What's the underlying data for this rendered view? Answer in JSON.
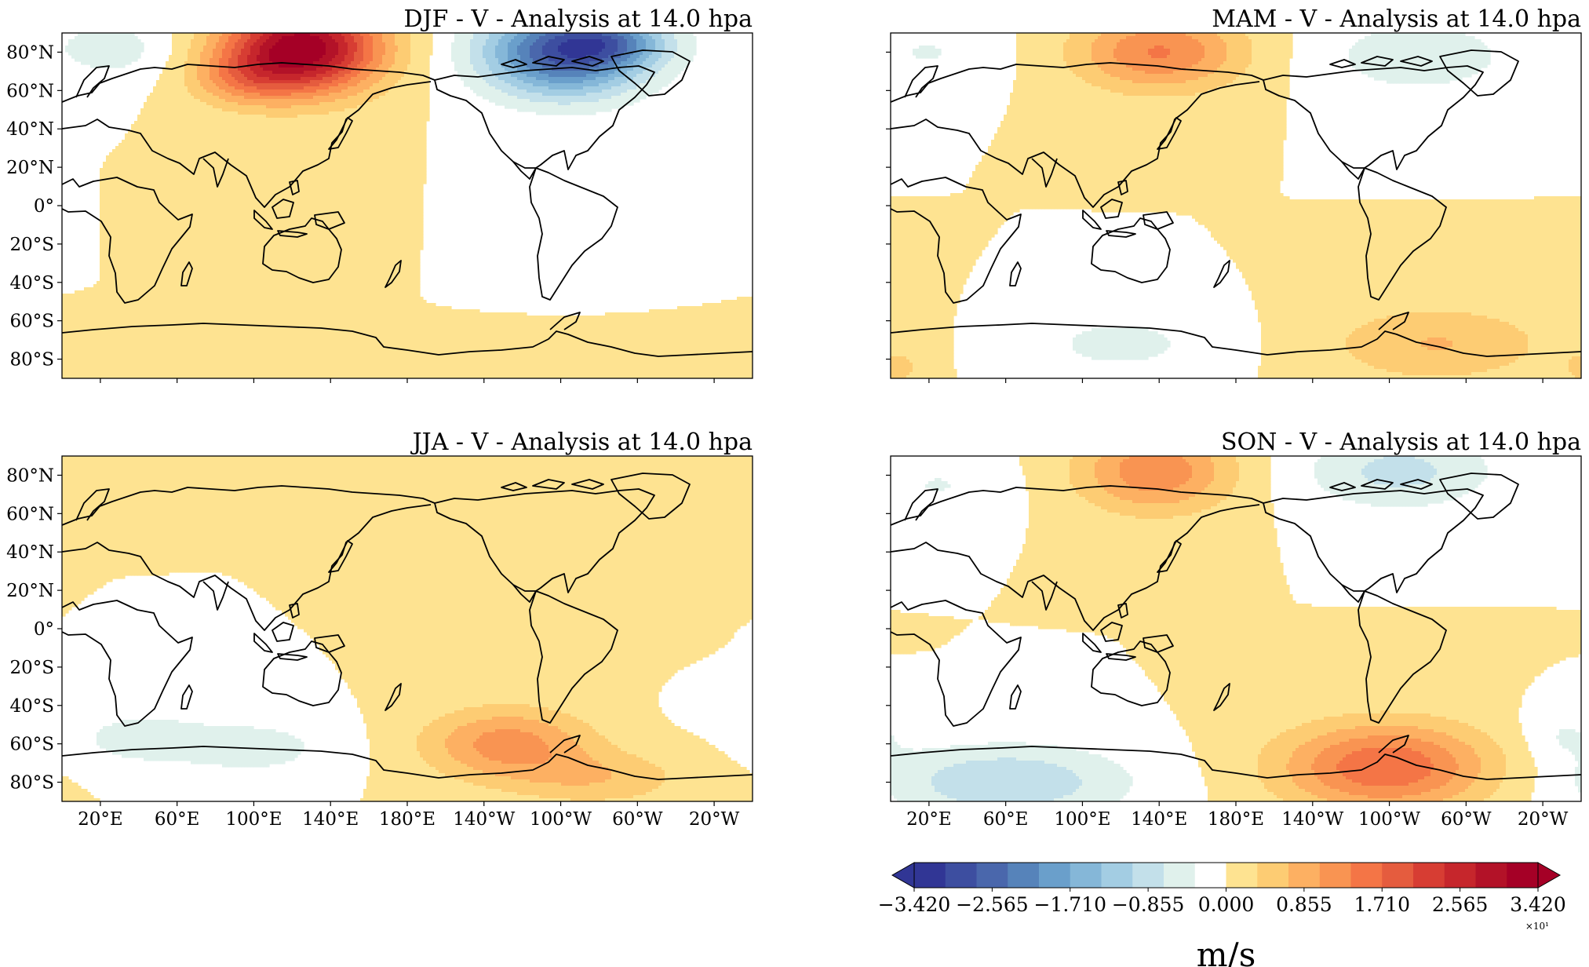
{
  "chart_data": {
    "type": "heatmap",
    "variable": "V",
    "units": "m/s",
    "colorbar": {
      "min": -3.42,
      "max": 3.42,
      "multiplier": "×10¹",
      "tick_values": [
        -3.42,
        -2.565,
        -1.71,
        -0.855,
        0.0,
        0.855,
        1.71,
        2.565,
        3.42
      ],
      "tick_labels": [
        "−3.420",
        "−2.565",
        "−1.710",
        "−0.855",
        "0.000",
        "0.855",
        "1.710",
        "2.565",
        "3.420"
      ],
      "extend": "both",
      "colors": [
        "#313695",
        "#3d4ea0",
        "#4a67ac",
        "#5683ba",
        "#6a9fcb",
        "#85b7d8",
        "#a3cde3",
        "#c3e0ea",
        "#e0f1ec",
        "#ffffff",
        "#fee391",
        "#fdcc73",
        "#fdb062",
        "#f99452",
        "#f47546",
        "#e55c3e",
        "#d73d33",
        "#c6262c",
        "#b31228",
        "#a50026"
      ],
      "over_color": "#a50026",
      "under_color": "#313695"
    },
    "x_axis": {
      "lon_range": [
        0,
        360
      ],
      "tick_lons": [
        20,
        60,
        100,
        140,
        180,
        220,
        260,
        300,
        340
      ],
      "tick_labels": [
        "20°E",
        "60°E",
        "100°E",
        "140°E",
        "180°E",
        "140°W",
        "100°W",
        "60°W",
        "20°W"
      ]
    },
    "y_axis": {
      "lat_range": [
        -90,
        90
      ],
      "tick_lats": [
        80,
        60,
        40,
        20,
        0,
        -20,
        -40,
        -60,
        -80
      ],
      "tick_labels": [
        "80°N",
        "60°N",
        "40°N",
        "20°N",
        "0°",
        "20°S",
        "40°S",
        "60°S",
        "80°S"
      ]
    },
    "panels": [
      {
        "title": "DJF - V - Analysis at 14.0 hpa",
        "anomalies": [
          {
            "lon": 125,
            "lat": 82,
            "value": 34.2,
            "sigma_lon": 28,
            "sigma_lat": 16
          },
          {
            "lon": 95,
            "lat": 66,
            "value": 8.0,
            "sigma_lon": 20,
            "sigma_lat": 10
          },
          {
            "lon": 262,
            "lat": 80,
            "value": -28.0,
            "sigma_lon": 30,
            "sigma_lat": 16
          },
          {
            "lon": 288,
            "lat": 85,
            "value": -10.0,
            "sigma_lon": 20,
            "sigma_lat": 8
          },
          {
            "lon": 25,
            "lat": 82,
            "value": -5.0,
            "sigma_lon": 25,
            "sigma_lat": 12
          }
        ]
      },
      {
        "title": "MAM - V - Analysis at 14.0 hpa",
        "anomalies": [
          {
            "lon": 140,
            "lat": 80,
            "value": 14.0,
            "sigma_lon": 30,
            "sigma_lat": 14
          },
          {
            "lon": 275,
            "lat": 78,
            "value": -6.0,
            "sigma_lon": 35,
            "sigma_lat": 14
          },
          {
            "lon": 20,
            "lat": 80,
            "value": -3.5,
            "sigma_lon": 25,
            "sigma_lat": 12
          },
          {
            "lon": 285,
            "lat": -72,
            "value": 7.0,
            "sigma_lon": 40,
            "sigma_lat": 14
          },
          {
            "lon": 120,
            "lat": -72,
            "value": -4.5,
            "sigma_lon": 35,
            "sigma_lat": 12
          },
          {
            "lon": 3,
            "lat": -85,
            "value": 5.0,
            "sigma_lon": 8,
            "sigma_lat": 6
          }
        ]
      },
      {
        "title": "JJA - V - Analysis at 14.0 hpa",
        "anomalies": [
          {
            "lon": 232,
            "lat": -60,
            "value": 12.0,
            "sigma_lon": 30,
            "sigma_lat": 13
          },
          {
            "lon": 280,
            "lat": -78,
            "value": 6.0,
            "sigma_lon": 32,
            "sigma_lat": 10
          },
          {
            "lon": 40,
            "lat": -57,
            "value": -5.0,
            "sigma_lon": 25,
            "sigma_lat": 10
          },
          {
            "lon": 100,
            "lat": -62,
            "value": -5.0,
            "sigma_lon": 30,
            "sigma_lat": 11
          },
          {
            "lon": 345,
            "lat": -42,
            "value": -2.0,
            "sigma_lon": 14,
            "sigma_lat": 6
          }
        ]
      },
      {
        "title": "SON - V - Analysis at 14.0 hpa",
        "anomalies": [
          {
            "lon": 138,
            "lat": 82,
            "value": 13.0,
            "sigma_lon": 28,
            "sigma_lat": 15
          },
          {
            "lon": 265,
            "lat": 82,
            "value": -8.0,
            "sigma_lon": 35,
            "sigma_lat": 14
          },
          {
            "lon": 25,
            "lat": 75,
            "value": -3.5,
            "sigma_lon": 25,
            "sigma_lat": 12
          },
          {
            "lon": 258,
            "lat": -72,
            "value": 17.0,
            "sigma_lon": 38,
            "sigma_lat": 16
          },
          {
            "lon": 60,
            "lat": -80,
            "value": -10.0,
            "sigma_lon": 45,
            "sigma_lat": 14
          },
          {
            "lon": 350,
            "lat": -55,
            "value": -3.5,
            "sigma_lon": 15,
            "sigma_lat": 10
          }
        ]
      }
    ]
  }
}
